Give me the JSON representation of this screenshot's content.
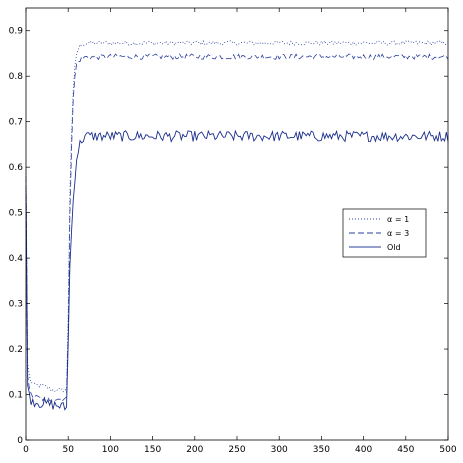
{
  "chart_data": {
    "type": "line",
    "title": "",
    "xlabel": "",
    "ylabel": "",
    "xlim": [
      0,
      500
    ],
    "ylim": [
      0,
      0.95
    ],
    "xticks": [
      0,
      50,
      100,
      150,
      200,
      250,
      300,
      350,
      400,
      450,
      500
    ],
    "yticks": [
      0,
      0.1,
      0.2,
      0.3,
      0.4,
      0.5,
      0.6,
      0.7,
      0.8,
      0.9
    ],
    "xtick_labels": [
      "0",
      "50",
      "100",
      "150",
      "200",
      "250",
      "300",
      "350",
      "400",
      "450",
      "500"
    ],
    "ytick_labels": [
      "0",
      "0.1",
      "0.2",
      "0.3",
      "0.4",
      "0.5",
      "0.6",
      "0.7",
      "0.8",
      "0.9"
    ],
    "grid": false,
    "legend_position": "center-right",
    "series": [
      {
        "name": "α = 1",
        "style": "dotted",
        "color": "#2b3f9e",
        "x": [
          0,
          1,
          2,
          3,
          5,
          10,
          20,
          30,
          40,
          48,
          50,
          52,
          55,
          58,
          60,
          63,
          66,
          70,
          80,
          100,
          150,
          200,
          250,
          300,
          350,
          400,
          450,
          500
        ],
        "y": [
          0.6,
          0.3,
          0.17,
          0.15,
          0.13,
          0.12,
          0.12,
          0.11,
          0.11,
          0.11,
          0.28,
          0.55,
          0.74,
          0.82,
          0.85,
          0.865,
          0.87,
          0.872,
          0.873,
          0.873,
          0.873,
          0.873,
          0.873,
          0.873,
          0.873,
          0.873,
          0.873,
          0.873
        ],
        "noise": 0.005
      },
      {
        "name": "α = 3",
        "style": "dashed",
        "color": "#2b3f9e",
        "x": [
          0,
          1,
          2,
          3,
          5,
          10,
          20,
          30,
          40,
          48,
          50,
          52,
          55,
          58,
          60,
          63,
          66,
          70,
          80,
          100,
          150,
          200,
          250,
          300,
          350,
          400,
          450,
          500
        ],
        "y": [
          0.58,
          0.28,
          0.14,
          0.12,
          0.1,
          0.095,
          0.09,
          0.09,
          0.09,
          0.09,
          0.24,
          0.5,
          0.72,
          0.8,
          0.825,
          0.835,
          0.84,
          0.842,
          0.842,
          0.843,
          0.843,
          0.843,
          0.843,
          0.843,
          0.843,
          0.843,
          0.843,
          0.843
        ],
        "noise": 0.006
      },
      {
        "name": "Old",
        "style": "solid",
        "color": "#1b2f8c",
        "x": [
          0,
          1,
          2,
          3,
          5,
          10,
          20,
          30,
          40,
          48,
          50,
          52,
          55,
          58,
          60,
          63,
          66,
          70,
          80,
          100,
          150,
          200,
          250,
          300,
          350,
          400,
          450,
          500
        ],
        "y": [
          0.56,
          0.2,
          0.12,
          0.1,
          0.09,
          0.085,
          0.08,
          0.078,
          0.075,
          0.07,
          0.22,
          0.38,
          0.5,
          0.58,
          0.62,
          0.645,
          0.66,
          0.668,
          0.668,
          0.668,
          0.668,
          0.668,
          0.668,
          0.668,
          0.668,
          0.668,
          0.668,
          0.668
        ],
        "noise": 0.012
      }
    ]
  },
  "legend": {
    "items": [
      {
        "label": "α = 1",
        "style": "dotted"
      },
      {
        "label": "α = 3",
        "style": "dashed"
      },
      {
        "label": "Old",
        "style": "solid"
      }
    ]
  },
  "colors": {
    "axis": "#000000",
    "line": "#2b3f9e"
  }
}
